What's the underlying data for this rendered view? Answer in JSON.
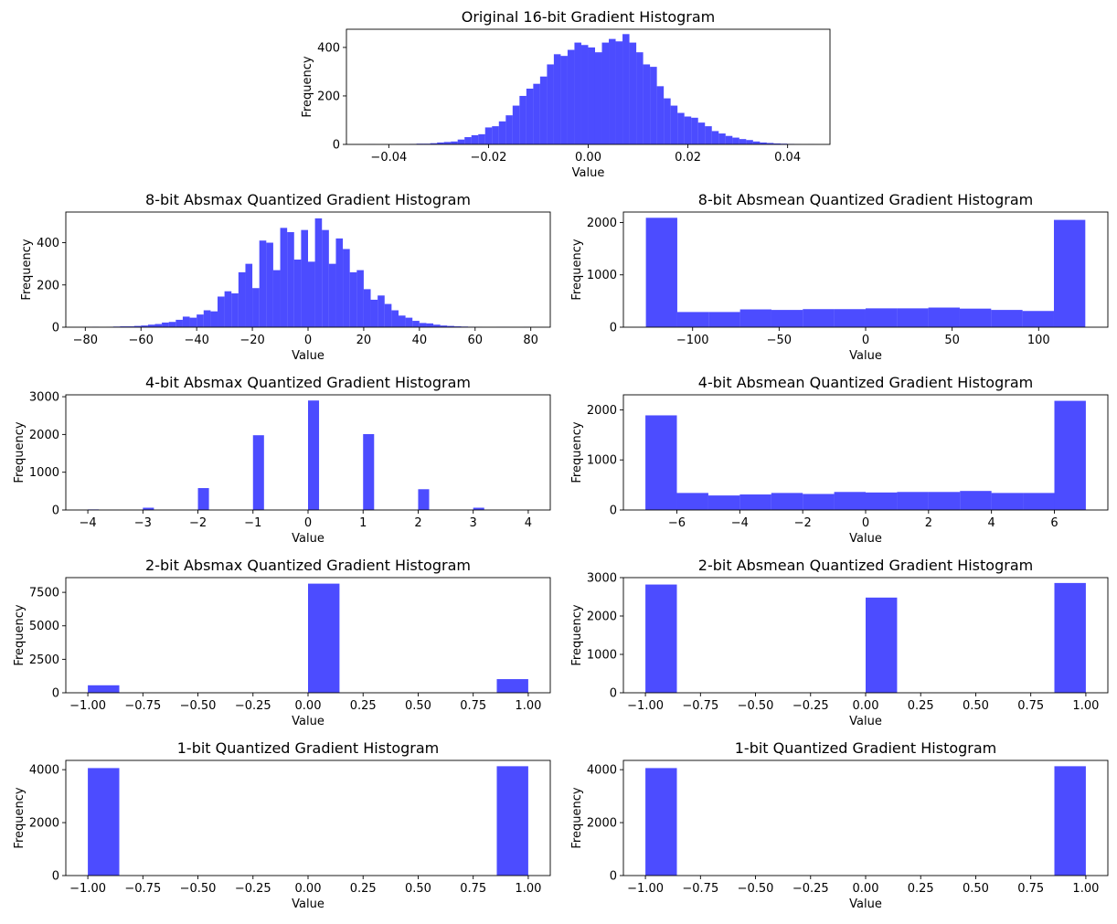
{
  "figure": {
    "bar_color": "#0000ff",
    "bar_opacity": 0.7
  },
  "chart_data": [
    {
      "id": "orig16",
      "type": "bar",
      "title": "Original 16-bit Gradient Histogram",
      "xlabel": "Value",
      "ylabel": "Frequency",
      "xlim": [
        -0.0485,
        0.0485
      ],
      "ylim": [
        0,
        475
      ],
      "xticks": [
        -0.04,
        -0.02,
        0.0,
        0.02,
        0.04
      ],
      "xtick_labels": [
        "−0.04",
        "−0.02",
        "0.00",
        "0.02",
        "0.04"
      ],
      "yticks": [
        0,
        200,
        400
      ],
      "ytick_labels": [
        "0",
        "200",
        "400"
      ],
      "bin_start": -0.0441,
      "bin_width": 0.001378,
      "values": [
        1,
        0,
        0,
        0,
        1,
        1,
        2,
        3,
        3,
        5,
        8,
        10,
        12,
        20,
        30,
        38,
        42,
        70,
        75,
        95,
        120,
        160,
        200,
        230,
        250,
        280,
        330,
        372,
        365,
        390,
        420,
        410,
        400,
        380,
        420,
        435,
        425,
        455,
        420,
        380,
        330,
        320,
        240,
        190,
        160,
        130,
        115,
        110,
        90,
        75,
        55,
        45,
        35,
        28,
        22,
        18,
        12,
        8,
        6,
        4,
        3,
        2,
        1,
        0,
        1
      ]
    },
    {
      "id": "absmax8",
      "type": "bar",
      "title": "8-bit Absmax Quantized Gradient Histogram",
      "xlabel": "Value",
      "ylabel": "Frequency",
      "xlim": [
        -87,
        87
      ],
      "ylim": [
        0,
        545
      ],
      "xticks": [
        -80,
        -60,
        -40,
        -20,
        0,
        20,
        40,
        60,
        80
      ],
      "xtick_labels": [
        "−80",
        "−60",
        "−40",
        "−20",
        "0",
        "20",
        "40",
        "60",
        "80"
      ],
      "yticks": [
        0,
        200,
        400
      ],
      "ytick_labels": [
        "0",
        "200",
        "400"
      ],
      "bin_start": -80,
      "bin_width": 2.5,
      "values": [
        1,
        2,
        0,
        1,
        3,
        4,
        4,
        6,
        8,
        12,
        15,
        22,
        25,
        35,
        50,
        45,
        60,
        80,
        75,
        145,
        170,
        160,
        260,
        300,
        185,
        410,
        400,
        270,
        470,
        450,
        320,
        460,
        310,
        515,
        460,
        300,
        420,
        370,
        260,
        270,
        180,
        130,
        150,
        110,
        80,
        55,
        45,
        30,
        20,
        18,
        12,
        8,
        6,
        4,
        3,
        2,
        1,
        0,
        0,
        1,
        1,
        0,
        0,
        1
      ]
    },
    {
      "id": "absmean8",
      "type": "bar",
      "title": "8-bit Absmean Quantized Gradient Histogram",
      "xlabel": "Value",
      "ylabel": "Frequency",
      "xlim": [
        -140,
        140
      ],
      "ylim": [
        0,
        2200
      ],
      "xticks": [
        -100,
        -50,
        0,
        50,
        100
      ],
      "xtick_labels": [
        "−100",
        "−50",
        "0",
        "50",
        "100"
      ],
      "yticks": [
        0,
        1000,
        2000
      ],
      "ytick_labels": [
        "0",
        "1000",
        "2000"
      ],
      "bin_start": -127,
      "bin_width": 18.14,
      "values": [
        2090,
        290,
        290,
        340,
        330,
        345,
        345,
        360,
        360,
        375,
        355,
        330,
        310,
        2050
      ]
    },
    {
      "id": "absmax4",
      "type": "bar",
      "title": "4-bit Absmax Quantized Gradient Histogram",
      "xlabel": "Value",
      "ylabel": "Frequency",
      "xlim": [
        -4.4,
        4.4
      ],
      "ylim": [
        0,
        3050
      ],
      "xticks": [
        -4,
        -3,
        -2,
        -1,
        0,
        1,
        2,
        3,
        4
      ],
      "xtick_labels": [
        "−4",
        "−3",
        "−2",
        "−1",
        "0",
        "1",
        "2",
        "3",
        "4"
      ],
      "yticks": [
        0,
        1000,
        2000,
        3000
      ],
      "ytick_labels": [
        "0",
        "1000",
        "2000",
        "3000"
      ],
      "bin_start": -4,
      "bin_width": 0.2,
      "values": [
        15,
        0,
        0,
        0,
        0,
        60,
        0,
        0,
        0,
        0,
        580,
        0,
        0,
        0,
        0,
        1980,
        0,
        0,
        0,
        0,
        2900,
        0,
        0,
        0,
        0,
        2010,
        0,
        0,
        0,
        0,
        550,
        0,
        0,
        0,
        0,
        60,
        0,
        0,
        0,
        0
      ]
    },
    {
      "id": "absmean4",
      "type": "bar",
      "title": "4-bit Absmean Quantized Gradient Histogram",
      "xlabel": "Value",
      "ylabel": "Frequency",
      "xlim": [
        -7.7,
        7.7
      ],
      "ylim": [
        0,
        2300
      ],
      "xticks": [
        -6,
        -4,
        -2,
        0,
        2,
        4,
        6
      ],
      "xtick_labels": [
        "−6",
        "−4",
        "−2",
        "0",
        "2",
        "4",
        "6"
      ],
      "yticks": [
        0,
        1000,
        2000
      ],
      "ytick_labels": [
        "0",
        "1000",
        "2000"
      ],
      "bin_start": -7,
      "bin_width": 1.0,
      "values": [
        1890,
        340,
        290,
        310,
        340,
        320,
        360,
        350,
        360,
        360,
        380,
        340,
        340,
        2180
      ]
    },
    {
      "id": "absmax2",
      "type": "bar",
      "title": "2-bit Absmax Quantized Gradient Histogram",
      "xlabel": "Value",
      "ylabel": "Frequency",
      "xlim": [
        -1.1,
        1.1
      ],
      "ylim": [
        0,
        8600
      ],
      "xticks": [
        -1.0,
        -0.75,
        -0.5,
        -0.25,
        0.0,
        0.25,
        0.5,
        0.75,
        1.0
      ],
      "xtick_labels": [
        "−1.00",
        "−0.75",
        "−0.50",
        "−0.25",
        "0.00",
        "0.25",
        "0.50",
        "0.75",
        "1.00"
      ],
      "yticks": [
        0,
        2500,
        5000,
        7500
      ],
      "ytick_labels": [
        "0",
        "2500",
        "5000",
        "7500"
      ],
      "bin_start": -1.0,
      "bin_width": 0.142857,
      "values": [
        560,
        0,
        0,
        0,
        0,
        0,
        0,
        8150,
        0,
        0,
        0,
        0,
        0,
        1020
      ]
    },
    {
      "id": "absmean2",
      "type": "bar",
      "title": "2-bit Absmean Quantized Gradient Histogram",
      "xlabel": "Value",
      "ylabel": "Frequency",
      "xlim": [
        -1.1,
        1.1
      ],
      "ylim": [
        0,
        3000
      ],
      "xticks": [
        -1.0,
        -0.75,
        -0.5,
        -0.25,
        0.0,
        0.25,
        0.5,
        0.75,
        1.0
      ],
      "xtick_labels": [
        "−1.00",
        "−0.75",
        "−0.50",
        "−0.25",
        "0.00",
        "0.25",
        "0.50",
        "0.75",
        "1.00"
      ],
      "yticks": [
        0,
        1000,
        2000,
        3000
      ],
      "ytick_labels": [
        "0",
        "1000",
        "2000",
        "3000"
      ],
      "bin_start": -1.0,
      "bin_width": 0.142857,
      "values": [
        2820,
        0,
        0,
        0,
        0,
        0,
        0,
        2480,
        0,
        0,
        0,
        0,
        0,
        2860
      ]
    },
    {
      "id": "bit1_left",
      "type": "bar",
      "title": "1-bit Quantized Gradient Histogram",
      "xlabel": "Value",
      "ylabel": "Frequency",
      "xlim": [
        -1.1,
        1.1
      ],
      "ylim": [
        0,
        4350
      ],
      "xticks": [
        -1.0,
        -0.75,
        -0.5,
        -0.25,
        0.0,
        0.25,
        0.5,
        0.75,
        1.0
      ],
      "xtick_labels": [
        "−1.00",
        "−0.75",
        "−0.50",
        "−0.25",
        "0.00",
        "0.25",
        "0.50",
        "0.75",
        "1.00"
      ],
      "yticks": [
        0,
        2000,
        4000
      ],
      "ytick_labels": [
        "0",
        "2000",
        "4000"
      ],
      "bin_start": -1.0,
      "bin_width": 0.142857,
      "values": [
        4060,
        0,
        0,
        0,
        0,
        0,
        0,
        0,
        0,
        0,
        0,
        0,
        0,
        4130
      ]
    },
    {
      "id": "bit1_right",
      "type": "bar",
      "title": "1-bit Quantized Gradient Histogram",
      "xlabel": "Value",
      "ylabel": "Frequency",
      "xlim": [
        -1.1,
        1.1
      ],
      "ylim": [
        0,
        4350
      ],
      "xticks": [
        -1.0,
        -0.75,
        -0.5,
        -0.25,
        0.0,
        0.25,
        0.5,
        0.75,
        1.0
      ],
      "xtick_labels": [
        "−1.00",
        "−0.75",
        "−0.50",
        "−0.25",
        "0.00",
        "0.25",
        "0.50",
        "0.75",
        "1.00"
      ],
      "yticks": [
        0,
        2000,
        4000
      ],
      "ytick_labels": [
        "0",
        "2000",
        "4000"
      ],
      "bin_start": -1.0,
      "bin_width": 0.142857,
      "values": [
        4060,
        0,
        0,
        0,
        0,
        0,
        0,
        0,
        0,
        0,
        0,
        0,
        0,
        4130
      ]
    }
  ]
}
